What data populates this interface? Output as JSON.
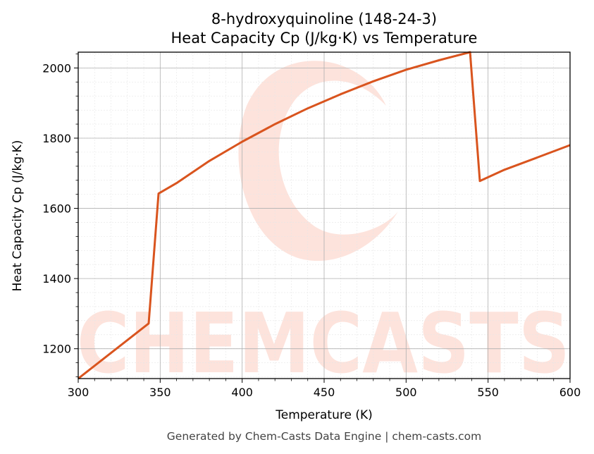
{
  "chart_data": {
    "type": "line",
    "title": "8-hydroxyquinoline (148-24-3)",
    "subtitle": "Heat Capacity Cp (J/kg·K) vs Temperature",
    "xlabel": "Temperature (K)",
    "ylabel": "Heat Capacity Cp (J/kg·K)",
    "xlim": [
      300,
      600
    ],
    "ylim": [
      1115,
      2045
    ],
    "xticks": [
      300,
      350,
      400,
      450,
      500,
      550,
      600
    ],
    "yticks": [
      1200,
      1400,
      1600,
      1800,
      2000
    ],
    "grid": true,
    "line_color": "#d9541e",
    "series": [
      {
        "x": [
          300,
          343,
          349,
          360,
          380,
          400,
          420,
          440,
          460,
          480,
          500,
          520,
          539,
          545,
          560,
          580,
          600
        ],
        "y": [
          1115,
          1272,
          1642,
          1672,
          1735,
          1790,
          1840,
          1885,
          1925,
          1962,
          1995,
          2022,
          2045,
          1678,
          1710,
          1745,
          1780
        ]
      }
    ]
  },
  "watermark": {
    "text": "CHEMCASTS",
    "color": "#fde3dc"
  },
  "footer": "Generated by Chem-Casts Data Engine | chem-casts.com"
}
